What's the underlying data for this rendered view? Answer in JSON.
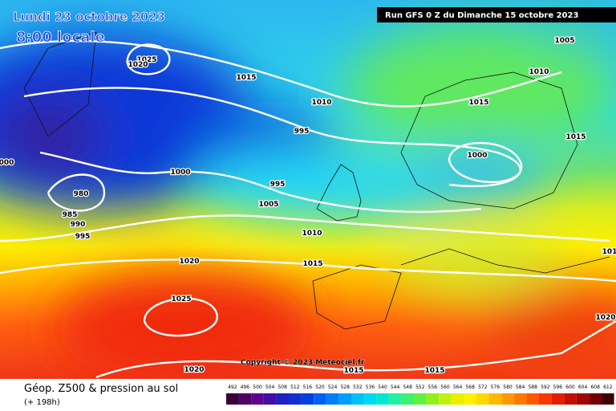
{
  "header": {
    "date": "Lundi 23 octobre 2023",
    "time": "8:00 locale",
    "run": "Run GFS 0 Z du Dimanche 15 octobre 2023"
  },
  "isobars": [
    "1025",
    "1020",
    "1015",
    "1010",
    "995",
    "1000",
    "995",
    "980",
    "985",
    "990",
    "995",
    "1005",
    "1010",
    "1015",
    "1020",
    "1025",
    "1020",
    "1015",
    "1015",
    "1005",
    "1010",
    "1015",
    "1015",
    "1000",
    "1020",
    "000",
    "101"
  ],
  "copyright": "Copyright © 2023 Meteociel.fr",
  "footer": {
    "title": "Géop. Z500 & pression au sol",
    "lead": "(+ 198h)"
  },
  "scale": [
    "492",
    "496",
    "500",
    "504",
    "508",
    "512",
    "516",
    "520",
    "524",
    "528",
    "532",
    "536",
    "540",
    "544",
    "548",
    "552",
    "556",
    "560",
    "564",
    "568",
    "572",
    "576",
    "580",
    "584",
    "588",
    "592",
    "596",
    "600",
    "604",
    "608",
    "612"
  ]
}
